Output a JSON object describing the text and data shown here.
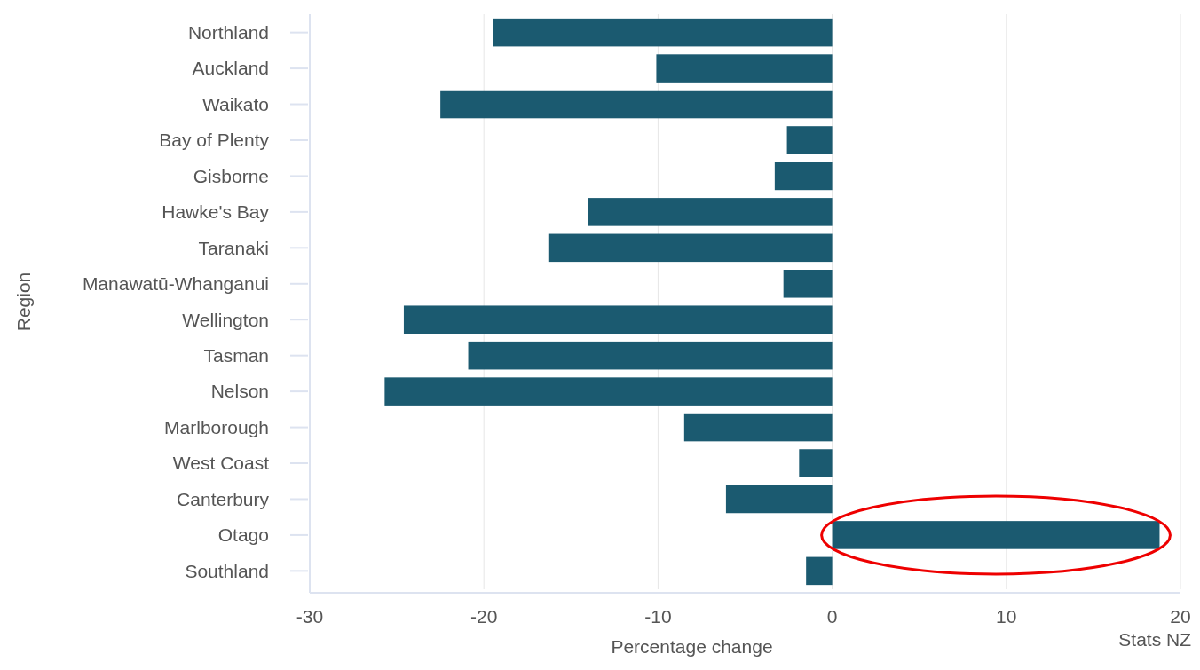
{
  "chart_data": {
    "type": "bar",
    "orientation": "horizontal",
    "xlabel": "Percentage change",
    "ylabel": "Region",
    "categories": [
      "Northland",
      "Auckland",
      "Waikato",
      "Bay of Plenty",
      "Gisborne",
      "Hawke's Bay",
      "Taranaki",
      "Manawatū-Whanganui",
      "Wellington",
      "Tasman",
      "Nelson",
      "Marlborough",
      "West Coast",
      "Canterbury",
      "Otago",
      "Southland"
    ],
    "values": [
      -19.5,
      -10.1,
      -22.5,
      -2.6,
      -3.3,
      -14.0,
      -16.3,
      -2.8,
      -24.6,
      -20.9,
      -25.7,
      -8.5,
      -1.9,
      -6.1,
      18.8,
      -1.5
    ],
    "color": "#1b5a70",
    "xlim": [
      -30,
      20
    ],
    "xticks": [
      -30,
      -20,
      -10,
      0,
      10,
      20
    ],
    "grid": "x",
    "annotations": [
      "Stats NZ"
    ]
  }
}
